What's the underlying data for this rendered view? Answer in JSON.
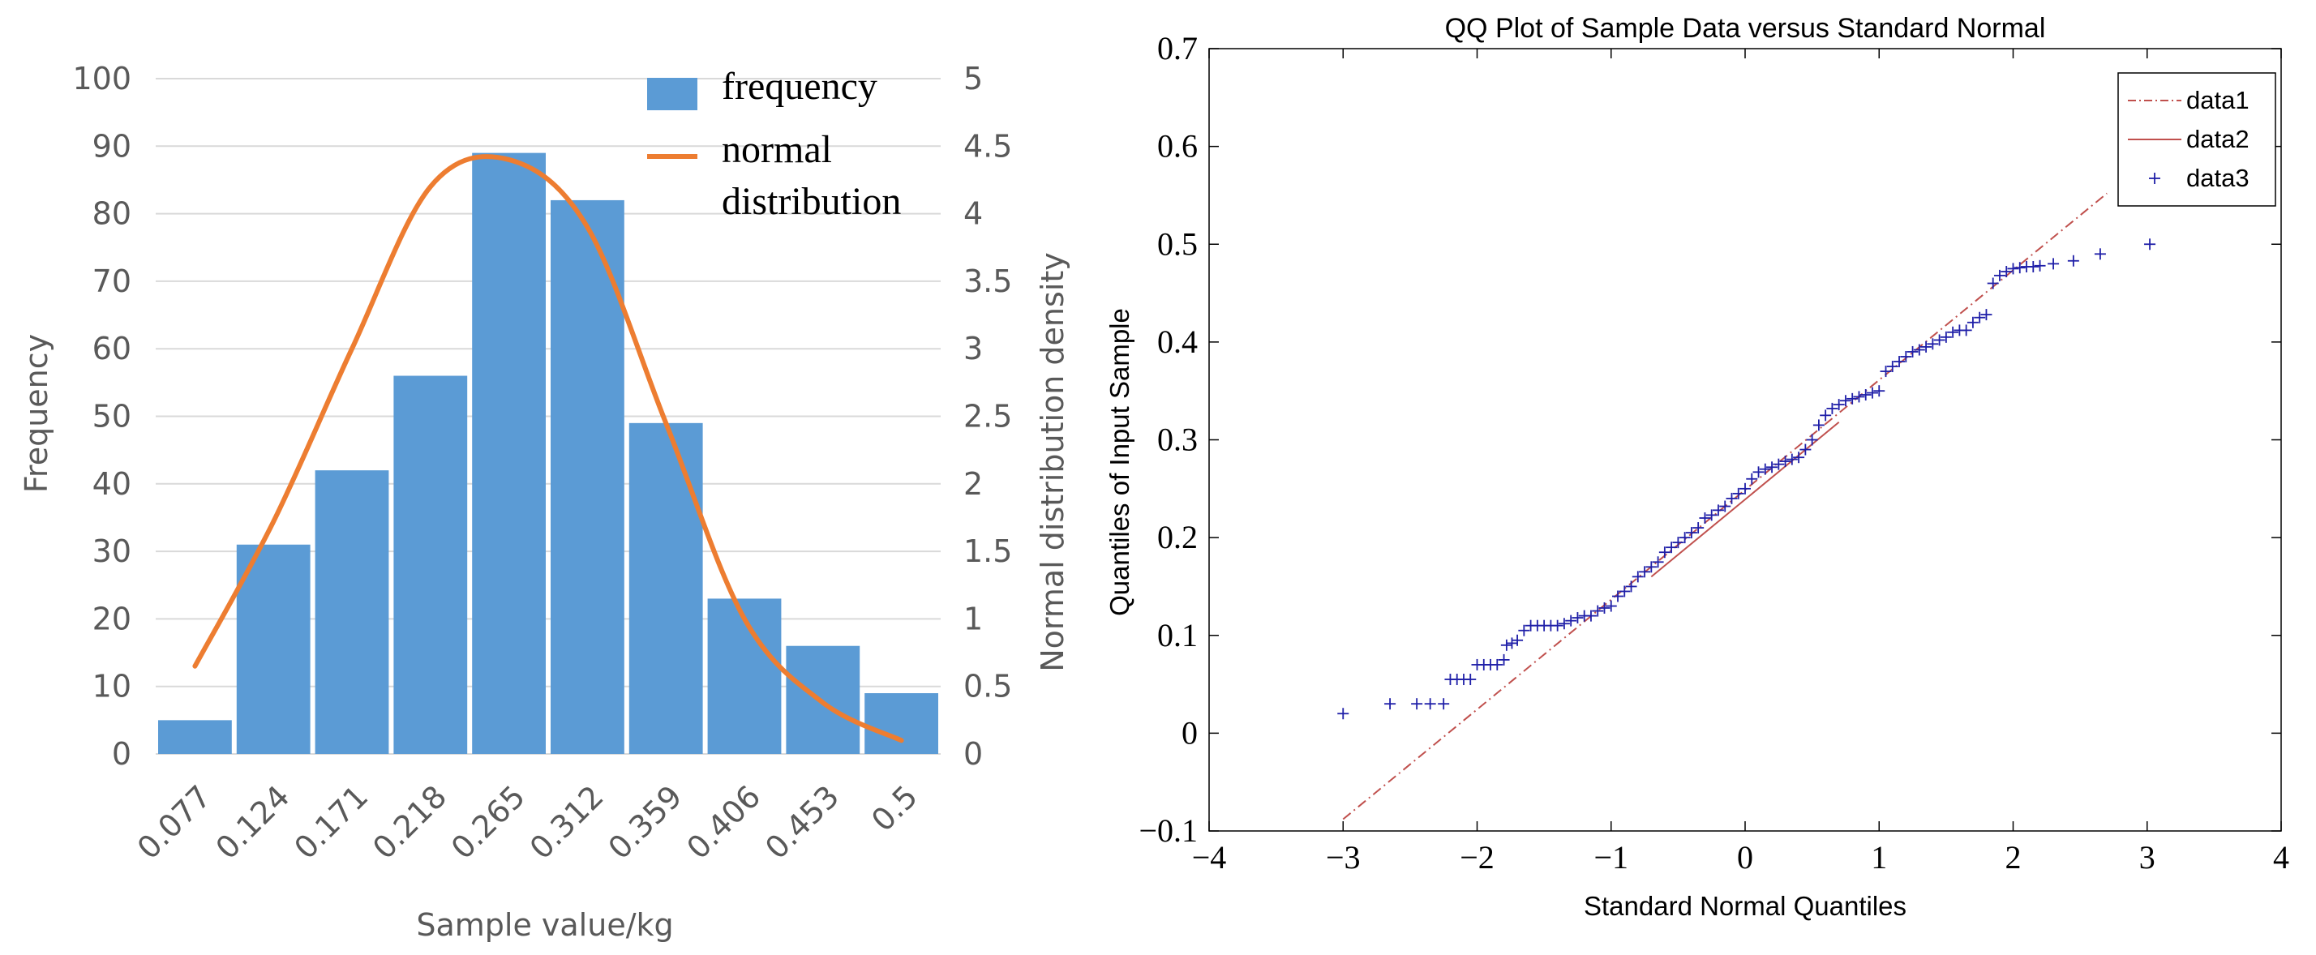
{
  "chart_data": [
    {
      "type": "bar",
      "title": "",
      "xlabel": "Sample value/kg",
      "ylabel": "Frequency",
      "y2label": "Normal distribution density",
      "categories": [
        "0.077",
        "0.124",
        "0.171",
        "0.218",
        "0.265",
        "0.312",
        "0.359",
        "0.406",
        "0.453",
        "0.5"
      ],
      "ylim": [
        0,
        100
      ],
      "yticks": [
        "0",
        "10",
        "20",
        "30",
        "40",
        "50",
        "60",
        "70",
        "80",
        "90",
        "100"
      ],
      "y2lim": [
        0,
        5
      ],
      "y2ticks": [
        "0",
        "0.5",
        "1",
        "1.5",
        "2",
        "2.5",
        "3",
        "3.5",
        "4",
        "4.5",
        "5"
      ],
      "series": [
        {
          "name": "frequency",
          "type": "bar",
          "axis": "left",
          "color": "#5b9bd5",
          "values": [
            5,
            31,
            42,
            56,
            89,
            82,
            49,
            23,
            16,
            9
          ]
        },
        {
          "name": "normal\ndistribution",
          "name_lines": [
            "normal",
            "distribution"
          ],
          "type": "line",
          "axis": "right",
          "color": "#ed7d31",
          "smooth": true,
          "values": [
            0.65,
            1.72,
            3.0,
            4.2,
            4.4,
            3.9,
            2.45,
            1.0,
            0.38,
            0.1
          ]
        }
      ],
      "legend_position": "top-right",
      "grid": true
    },
    {
      "type": "scatter",
      "title": "QQ Plot of Sample Data versus Standard Normal",
      "xlabel": "Standard Normal Quantiles",
      "ylabel": "Quantiles of Input Sample",
      "xlim": [
        -4,
        4
      ],
      "ylim": [
        -0.1,
        0.7
      ],
      "xticks": [
        -4,
        -3,
        -2,
        -1,
        0,
        1,
        2,
        3,
        4
      ],
      "xtick_labels": [
        "−4",
        "−3",
        "−2",
        "−1",
        "0",
        "1",
        "2",
        "3",
        "4"
      ],
      "yticks": [
        -0.1,
        0,
        0.1,
        0.2,
        0.3,
        0.4,
        0.5,
        0.6,
        0.7
      ],
      "ytick_labels": [
        "−0.1",
        "0",
        "0.1",
        "0.2",
        "0.3",
        "0.4",
        "0.5",
        "0.6",
        "0.7"
      ],
      "grid": false,
      "legend_position": "top-right",
      "series": [
        {
          "name": "data1",
          "type": "line",
          "style": "dash-dot",
          "color": "#c0504d",
          "x": [
            -3,
            2.7
          ],
          "y": [
            -0.088,
            0.552
          ]
        },
        {
          "name": "data2",
          "type": "line",
          "style": "solid",
          "color": "#c0504d",
          "x": [
            -0.7,
            0.7
          ],
          "y": [
            0.16,
            0.318
          ]
        },
        {
          "name": "data3",
          "type": "scatter",
          "marker": "+",
          "color": "#1f1fa8",
          "points": [
            [
              -3.0,
              0.02
            ],
            [
              -2.65,
              0.03
            ],
            [
              -2.45,
              0.03
            ],
            [
              -2.35,
              0.03
            ],
            [
              -2.25,
              0.03
            ],
            [
              -2.2,
              0.055
            ],
            [
              -2.15,
              0.055
            ],
            [
              -2.1,
              0.055
            ],
            [
              -2.05,
              0.055
            ],
            [
              -2.0,
              0.07
            ],
            [
              -1.95,
              0.07
            ],
            [
              -1.9,
              0.07
            ],
            [
              -1.85,
              0.07
            ],
            [
              -1.8,
              0.075
            ],
            [
              -1.78,
              0.09
            ],
            [
              -1.74,
              0.092
            ],
            [
              -1.7,
              0.095
            ],
            [
              -1.65,
              0.105
            ],
            [
              -1.6,
              0.11
            ],
            [
              -1.55,
              0.11
            ],
            [
              -1.5,
              0.11
            ],
            [
              -1.45,
              0.11
            ],
            [
              -1.4,
              0.11
            ],
            [
              -1.35,
              0.112
            ],
            [
              -1.3,
              0.115
            ],
            [
              -1.25,
              0.118
            ],
            [
              -1.2,
              0.12
            ],
            [
              -1.15,
              0.12
            ],
            [
              -1.1,
              0.125
            ],
            [
              -1.05,
              0.128
            ],
            [
              -1.0,
              0.13
            ],
            [
              -0.95,
              0.14
            ],
            [
              -0.9,
              0.145
            ],
            [
              -0.85,
              0.15
            ],
            [
              -0.8,
              0.16
            ],
            [
              -0.75,
              0.165
            ],
            [
              -0.7,
              0.17
            ],
            [
              -0.65,
              0.175
            ],
            [
              -0.6,
              0.185
            ],
            [
              -0.55,
              0.19
            ],
            [
              -0.5,
              0.195
            ],
            [
              -0.45,
              0.2
            ],
            [
              -0.4,
              0.205
            ],
            [
              -0.35,
              0.21
            ],
            [
              -0.3,
              0.22
            ],
            [
              -0.25,
              0.223
            ],
            [
              -0.2,
              0.228
            ],
            [
              -0.15,
              0.232
            ],
            [
              -0.1,
              0.24
            ],
            [
              -0.05,
              0.245
            ],
            [
              0.0,
              0.25
            ],
            [
              0.05,
              0.26
            ],
            [
              0.1,
              0.267
            ],
            [
              0.15,
              0.27
            ],
            [
              0.2,
              0.272
            ],
            [
              0.25,
              0.275
            ],
            [
              0.3,
              0.278
            ],
            [
              0.35,
              0.28
            ],
            [
              0.4,
              0.282
            ],
            [
              0.45,
              0.29
            ],
            [
              0.5,
              0.3
            ],
            [
              0.55,
              0.315
            ],
            [
              0.6,
              0.325
            ],
            [
              0.65,
              0.332
            ],
            [
              0.7,
              0.336
            ],
            [
              0.75,
              0.34
            ],
            [
              0.8,
              0.342
            ],
            [
              0.85,
              0.344
            ],
            [
              0.9,
              0.346
            ],
            [
              0.95,
              0.348
            ],
            [
              1.0,
              0.35
            ],
            [
              1.05,
              0.37
            ],
            [
              1.1,
              0.375
            ],
            [
              1.15,
              0.38
            ],
            [
              1.2,
              0.385
            ],
            [
              1.25,
              0.39
            ],
            [
              1.3,
              0.392
            ],
            [
              1.35,
              0.395
            ],
            [
              1.4,
              0.398
            ],
            [
              1.45,
              0.402
            ],
            [
              1.5,
              0.405
            ],
            [
              1.55,
              0.41
            ],
            [
              1.6,
              0.412
            ],
            [
              1.65,
              0.412
            ],
            [
              1.7,
              0.42
            ],
            [
              1.75,
              0.425
            ],
            [
              1.8,
              0.428
            ],
            [
              1.85,
              0.46
            ],
            [
              1.9,
              0.468
            ],
            [
              1.95,
              0.472
            ],
            [
              2.0,
              0.475
            ],
            [
              2.05,
              0.476
            ],
            [
              2.1,
              0.477
            ],
            [
              2.15,
              0.477
            ],
            [
              2.2,
              0.478
            ],
            [
              2.3,
              0.48
            ],
            [
              2.45,
              0.483
            ],
            [
              2.65,
              0.49
            ],
            [
              3.02,
              0.5
            ]
          ]
        }
      ]
    }
  ]
}
